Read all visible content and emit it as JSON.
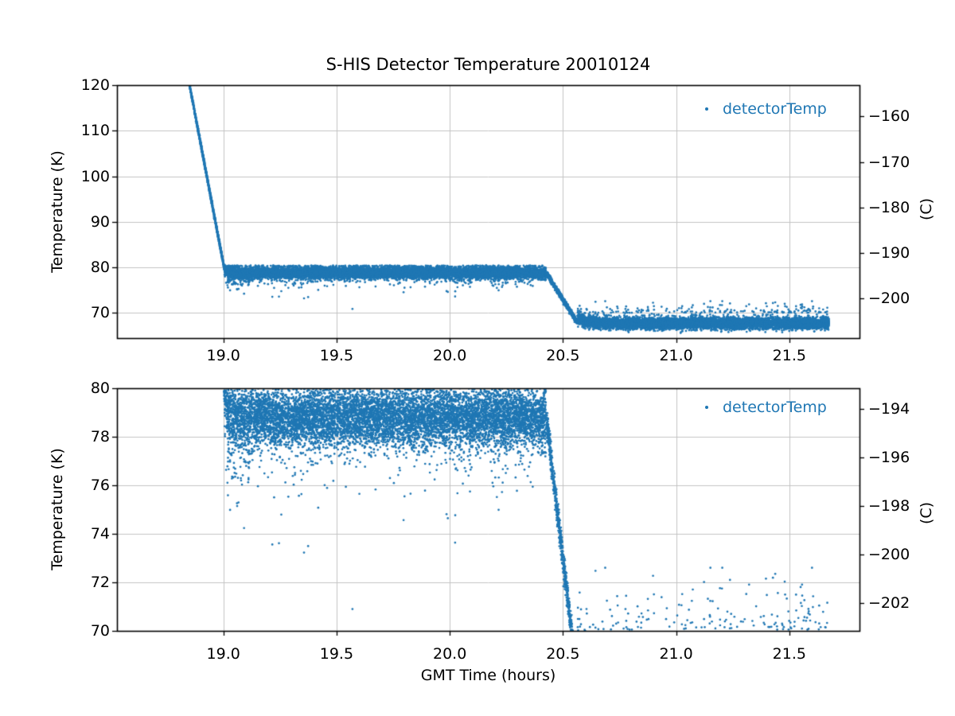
{
  "figure": {
    "title": "S-HIS Detector Temperature 20010124",
    "background": "#ffffff",
    "accent_color": "#1f77b4",
    "grid_color": "#c4c4c4",
    "spine_color": "#000000",
    "xlabel": "GMT Time (hours)"
  },
  "chart_data": [
    {
      "type": "scatter",
      "subplot": "top",
      "title": "S-HIS Detector Temperature 20010124",
      "ylabel": "Temperature (K)",
      "right_axis_label": "(C)",
      "legend": [
        {
          "label": "detectorTemp",
          "color": "#1f77b4",
          "marker": "dot"
        }
      ],
      "xlim": [
        18.53,
        21.81
      ],
      "ylim": [
        64.5,
        120
      ],
      "xticks": [
        19.0,
        19.5,
        20.0,
        20.5,
        21.0,
        21.5
      ],
      "yticks": [
        70,
        80,
        90,
        100,
        110,
        120
      ],
      "right_yticks_C": [
        -160,
        -170,
        -180,
        -190,
        -200
      ],
      "grid": true,
      "legend_position": "upper right",
      "series": [
        {
          "name": "detectorTemp",
          "color": "#1f77b4",
          "kelvin_to_celsius_offset": -273.15,
          "segments": [
            {
              "phase": "initial-cooldown",
              "type": "ramp",
              "t": [
                18.845,
                19.005
              ],
              "K": [
                121.5,
                79.5
              ],
              "sigma": 0.22,
              "n": 1100
            },
            {
              "phase": "first-plateau",
              "type": "band",
              "t": [
                19.005,
                20.425
              ],
              "K_mean": 78.85,
              "sigma": 0.62,
              "n": 9500,
              "elbow": {
                "amp": 0.9,
                "tau": 0.022
              },
              "early_tail": {
                "until": 19.12,
                "p": 0.3,
                "scale": 0.8
              },
              "down_tail": {
                "p": 0.1,
                "scale": 0.55
              },
              "low_outliers": {
                "p": 0.009,
                "offset": 1.2,
                "scale": 1.0
              },
              "up_outliers": {
                "p": 0.02,
                "base": 80.1,
                "scale": 0.55,
                "max": 82.3
              },
              "cap_high": 80.45
            },
            {
              "phase": "second-cooldown",
              "type": "ramp",
              "t": [
                20.425,
                20.565
              ],
              "K": [
                78.9,
                67.8
              ],
              "sigma": 0.3,
              "n": 750
            },
            {
              "phase": "second-plateau",
              "type": "band",
              "t": [
                20.565,
                21.675
              ],
              "K_mean": 67.75,
              "sigma": 0.62,
              "n": 7500,
              "elbow": {
                "amp": 1.2,
                "tau": 0.04
              },
              "up_tail": {
                "p": 0.05,
                "scale": 0.5
              },
              "high_outliers": {
                "p_start": 0.012,
                "p_end": 0.032,
                "base": 70.05,
                "scale": 0.62,
                "max": 72.6
              },
              "cap_low": 65.2
            }
          ]
        }
      ]
    },
    {
      "type": "scatter",
      "subplot": "bottom",
      "note": "zoomed view of the same detectorTemp series",
      "xlabel": "GMT Time (hours)",
      "ylabel": "Temperature (K)",
      "right_axis_label": "(C)",
      "legend": [
        {
          "label": "detectorTemp",
          "color": "#1f77b4",
          "marker": "dot"
        }
      ],
      "xlim": [
        18.53,
        21.81
      ],
      "ylim": [
        70,
        80
      ],
      "xticks": [
        19.0,
        19.5,
        20.0,
        20.5,
        21.0,
        21.5
      ],
      "yticks": [
        70,
        72,
        74,
        76,
        78,
        80
      ],
      "right_yticks_C": [
        -194,
        -196,
        -198,
        -200,
        -202
      ],
      "grid": true,
      "legend_position": "upper right"
    }
  ]
}
